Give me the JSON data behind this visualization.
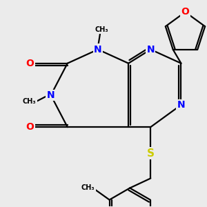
{
  "bg_color": "#ebebeb",
  "atom_colors": {
    "N": "#0000ff",
    "O": "#ff0000",
    "S": "#cccc00",
    "C": "#000000"
  },
  "bond_color": "#000000",
  "bond_width": 1.6,
  "fig_width": 3.0,
  "fig_height": 3.0,
  "dpi": 100,
  "xlim": [
    0,
    10
  ],
  "ylim": [
    0,
    10
  ]
}
